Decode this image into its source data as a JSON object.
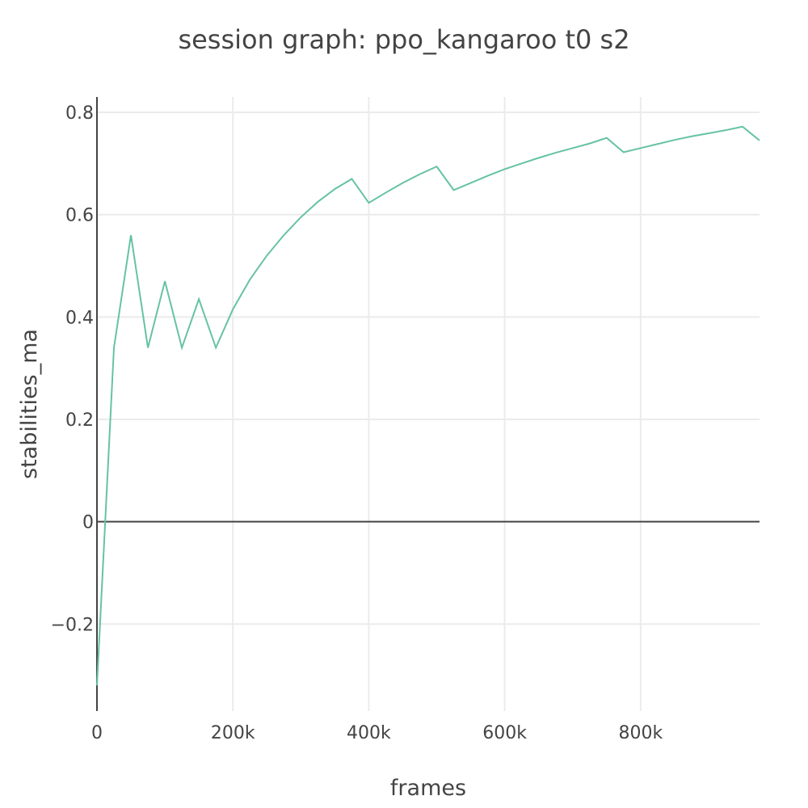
{
  "chart_data": {
    "type": "line",
    "title": "session graph: ppo_kangaroo t0 s2",
    "xlabel": "frames",
    "ylabel": "stabilities_ma",
    "xlim": [
      0,
      975000
    ],
    "ylim": [
      -0.37,
      0.83
    ],
    "x_ticks": [
      0,
      200000,
      400000,
      600000,
      800000
    ],
    "x_tick_labels": [
      "0",
      "200k",
      "400k",
      "600k",
      "800k"
    ],
    "y_ticks": [
      -0.2,
      0,
      0.2,
      0.4,
      0.6,
      0.8
    ],
    "y_tick_labels": [
      "−0.2",
      "0",
      "0.2",
      "0.4",
      "0.6",
      "0.8"
    ],
    "grid": true,
    "color": "#66c2a5",
    "series": [
      {
        "x": [
          0,
          25000,
          50000,
          75000,
          100000,
          125000,
          150000,
          175000,
          200000,
          225000,
          250000,
          275000,
          300000,
          325000,
          350000,
          375000,
          400000,
          425000,
          450000,
          475000,
          500000,
          525000,
          550000,
          575000,
          600000,
          625000,
          650000,
          675000,
          700000,
          725000,
          750000,
          775000,
          800000,
          825000,
          850000,
          875000,
          900000,
          925000,
          950000,
          975000
        ],
        "y": [
          -0.32,
          0.34,
          0.56,
          0.34,
          0.47,
          0.34,
          0.435,
          0.34,
          0.415,
          0.473,
          0.52,
          0.56,
          0.595,
          0.625,
          0.65,
          0.67,
          0.623,
          0.643,
          0.662,
          0.679,
          0.694,
          0.648,
          0.662,
          0.676,
          0.689,
          0.7,
          0.711,
          0.721,
          0.73,
          0.739,
          0.75,
          0.722,
          0.73,
          0.738,
          0.746,
          0.753,
          0.759,
          0.765,
          0.772,
          0.745
        ]
      }
    ]
  }
}
